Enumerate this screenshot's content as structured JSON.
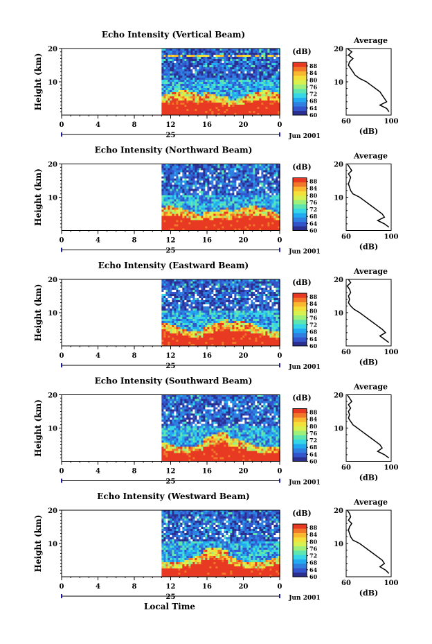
{
  "figure": {
    "xlabel": "Local Time",
    "date_label": "Jun 2001",
    "day_label": "25",
    "ylabel": "Height (km)",
    "cbar_unit": "(dB)",
    "avg_title": "Average",
    "avg_xlabel": "(dB)"
  },
  "colormap": [
    "#2b2f8f",
    "#3355cc",
    "#2f7fe0",
    "#22aaf0",
    "#36d6e6",
    "#5fe6b0",
    "#9ff07a",
    "#d8f050",
    "#f4e03a",
    "#f8b830",
    "#f07828",
    "#e83a22"
  ],
  "chart_data": [
    {
      "type": "heatmap",
      "title": "Echo Intensity (Vertical Beam)",
      "beam": "vertical",
      "x_ticks": [
        "0",
        "4",
        "8",
        "12",
        "16",
        "20",
        "0"
      ],
      "xlim": [
        0,
        24
      ],
      "ylim": [
        0,
        20
      ],
      "y_ticks": [
        "10",
        "20"
      ],
      "data_start_hour": 11.0,
      "colorbar": {
        "ticks": [
          "60",
          "64",
          "68",
          "72",
          "76",
          "80",
          "84",
          "88"
        ],
        "range": [
          60,
          90
        ]
      },
      "average_profile": {
        "xlim": [
          60,
          100
        ],
        "x_ticks": [
          "60",
          "100"
        ],
        "y_ticks": [
          "10",
          "20"
        ],
        "height_km": [
          1,
          2,
          3,
          4,
          5,
          6,
          7,
          8,
          9,
          10,
          11,
          12,
          13,
          14,
          15,
          16,
          17,
          18,
          19,
          20
        ],
        "db": [
          98,
          96,
          90,
          96,
          94,
          92,
          90,
          86,
          82,
          78,
          72,
          68,
          66,
          64,
          62,
          63,
          66,
          62,
          65,
          61
        ]
      }
    },
    {
      "type": "heatmap",
      "title": "Echo Intensity (Northward Beam)",
      "beam": "north",
      "x_ticks": [
        "0",
        "4",
        "8",
        "12",
        "16",
        "20",
        "0"
      ],
      "xlim": [
        0,
        24
      ],
      "ylim": [
        0,
        20
      ],
      "y_ticks": [
        "10",
        "20"
      ],
      "data_start_hour": 11.0,
      "colorbar": {
        "ticks": [
          "60",
          "64",
          "68",
          "72",
          "76",
          "80",
          "84",
          "88"
        ],
        "range": [
          60,
          90
        ]
      },
      "average_profile": {
        "xlim": [
          60,
          100
        ],
        "x_ticks": [
          "60",
          "100"
        ],
        "y_ticks": [
          "10",
          "20"
        ],
        "height_km": [
          1,
          2,
          3,
          4,
          5,
          6,
          7,
          8,
          9,
          10,
          11,
          12,
          13,
          14,
          15,
          16,
          17,
          18,
          19,
          20
        ],
        "db": [
          98,
          94,
          88,
          94,
          92,
          88,
          84,
          80,
          76,
          72,
          66,
          64,
          63,
          62,
          63,
          64,
          62,
          65,
          63,
          61
        ]
      }
    },
    {
      "type": "heatmap",
      "title": "Echo Intensity (Eastward Beam)",
      "beam": "east",
      "x_ticks": [
        "0",
        "4",
        "8",
        "12",
        "16",
        "20",
        "0"
      ],
      "xlim": [
        0,
        24
      ],
      "ylim": [
        0,
        20
      ],
      "y_ticks": [
        "10",
        "20"
      ],
      "data_start_hour": 11.0,
      "colorbar": {
        "ticks": [
          "60",
          "64",
          "68",
          "72",
          "76",
          "80",
          "84",
          "88"
        ],
        "range": [
          60,
          90
        ]
      },
      "average_profile": {
        "xlim": [
          60,
          100
        ],
        "x_ticks": [
          "60",
          "100"
        ],
        "y_ticks": [
          "10",
          "20"
        ],
        "height_km": [
          1,
          2,
          3,
          4,
          5,
          6,
          7,
          8,
          9,
          10,
          11,
          12,
          13,
          14,
          15,
          16,
          17,
          18,
          19,
          20
        ],
        "db": [
          98,
          94,
          90,
          95,
          92,
          88,
          84,
          80,
          76,
          72,
          67,
          64,
          62,
          63,
          62,
          64,
          63,
          61,
          64,
          62
        ]
      }
    },
    {
      "type": "heatmap",
      "title": "Echo Intensity (Southward Beam)",
      "beam": "south",
      "x_ticks": [
        "0",
        "4",
        "8",
        "12",
        "16",
        "20",
        "0"
      ],
      "xlim": [
        0,
        24
      ],
      "ylim": [
        0,
        20
      ],
      "y_ticks": [
        "10",
        "20"
      ],
      "data_start_hour": 11.0,
      "colorbar": {
        "ticks": [
          "60",
          "64",
          "68",
          "72",
          "76",
          "80",
          "84",
          "88"
        ],
        "range": [
          60,
          90
        ]
      },
      "average_profile": {
        "xlim": [
          60,
          100
        ],
        "x_ticks": [
          "60",
          "100"
        ],
        "y_ticks": [
          "10",
          "20"
        ],
        "height_km": [
          1,
          2,
          3,
          4,
          5,
          6,
          7,
          8,
          9,
          10,
          11,
          12,
          13,
          14,
          15,
          16,
          17,
          18,
          19,
          20
        ],
        "db": [
          98,
          94,
          88,
          92,
          90,
          86,
          82,
          78,
          74,
          70,
          66,
          64,
          62,
          63,
          62,
          64,
          62,
          65,
          63,
          61
        ]
      }
    },
    {
      "type": "heatmap",
      "title": "Echo Intensity (Westward Beam)",
      "beam": "west",
      "x_ticks": [
        "0",
        "4",
        "8",
        "12",
        "16",
        "20",
        "0"
      ],
      "xlim": [
        0,
        24
      ],
      "ylim": [
        0,
        20
      ],
      "y_ticks": [
        "10",
        "20"
      ],
      "data_start_hour": 11.0,
      "colorbar": {
        "ticks": [
          "60",
          "64",
          "68",
          "72",
          "76",
          "80",
          "84",
          "88"
        ],
        "range": [
          60,
          90
        ]
      },
      "average_profile": {
        "xlim": [
          60,
          100
        ],
        "x_ticks": [
          "60",
          "100"
        ],
        "y_ticks": [
          "10",
          "20"
        ],
        "height_km": [
          1,
          2,
          3,
          4,
          5,
          6,
          7,
          8,
          9,
          10,
          11,
          12,
          13,
          14,
          15,
          16,
          17,
          18,
          19,
          20
        ],
        "db": [
          98,
          95,
          90,
          94,
          92,
          88,
          84,
          80,
          76,
          72,
          66,
          64,
          63,
          62,
          63,
          65,
          62,
          64,
          63,
          61
        ]
      }
    }
  ]
}
